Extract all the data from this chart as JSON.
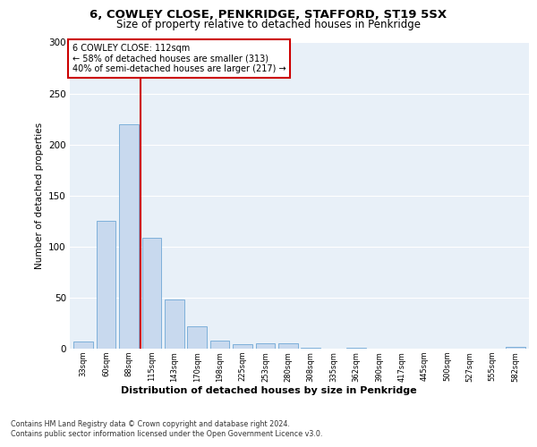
{
  "title1": "6, COWLEY CLOSE, PENKRIDGE, STAFFORD, ST19 5SX",
  "title2": "Size of property relative to detached houses in Penkridge",
  "xlabel": "Distribution of detached houses by size in Penkridge",
  "ylabel": "Number of detached properties",
  "categories": [
    "33sqm",
    "60sqm",
    "88sqm",
    "115sqm",
    "143sqm",
    "170sqm",
    "198sqm",
    "225sqm",
    "253sqm",
    "280sqm",
    "308sqm",
    "335sqm",
    "362sqm",
    "390sqm",
    "417sqm",
    "445sqm",
    "500sqm",
    "527sqm",
    "555sqm",
    "582sqm"
  ],
  "values": [
    7,
    125,
    220,
    109,
    48,
    22,
    8,
    4,
    5,
    5,
    1,
    0,
    1,
    0,
    0,
    0,
    0,
    0,
    0,
    2
  ],
  "bar_color": "#c8d9ee",
  "bar_edge_color": "#6fa8d6",
  "background_color": "#e8f0f8",
  "grid_color": "#ffffff",
  "annotation_box_text": "6 COWLEY CLOSE: 112sqm\n← 58% of detached houses are smaller (313)\n40% of semi-detached houses are larger (217) →",
  "annotation_box_color": "#ffffff",
  "annotation_box_edge_color": "#cc0000",
  "annotation_text_color": "#000000",
  "vline_x": 2.5,
  "vline_color": "#cc0000",
  "ylim": [
    0,
    300
  ],
  "yticks": [
    0,
    50,
    100,
    150,
    200,
    250,
    300
  ],
  "footer1": "Contains HM Land Registry data © Crown copyright and database right 2024.",
  "footer2": "Contains public sector information licensed under the Open Government Licence v3.0."
}
